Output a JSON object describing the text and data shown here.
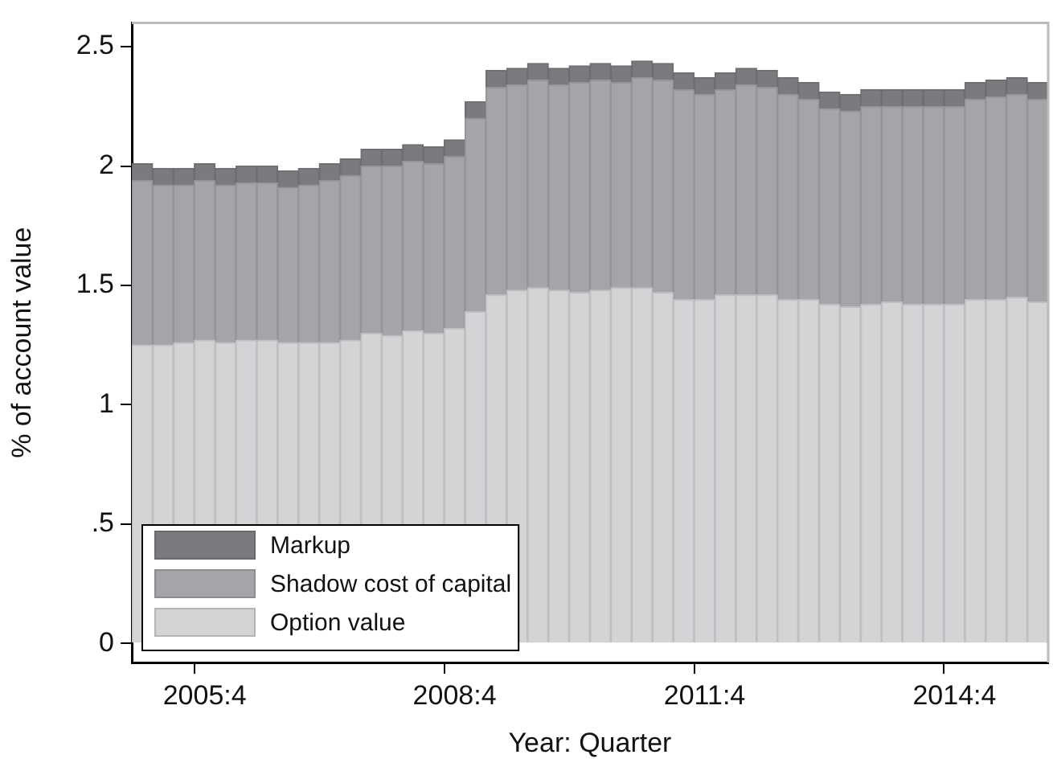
{
  "chart_data": {
    "type": "bar",
    "stacked": true,
    "xlabel": "Year: Quarter",
    "ylabel": "% of account value",
    "categories": [
      null,
      null,
      null,
      "2005:4",
      null,
      null,
      null,
      null,
      null,
      null,
      null,
      null,
      null,
      null,
      null,
      "2008:4",
      null,
      null,
      null,
      null,
      null,
      null,
      null,
      null,
      null,
      null,
      null,
      "2011:4",
      null,
      null,
      null,
      null,
      null,
      null,
      null,
      null,
      null,
      null,
      null,
      "2014:4",
      null,
      null,
      null,
      null
    ],
    "series": [
      {
        "name": "Option value",
        "color": "#d3d4d6",
        "values": [
          1.25,
          1.25,
          1.26,
          1.27,
          1.26,
          1.27,
          1.27,
          1.26,
          1.26,
          1.26,
          1.27,
          1.3,
          1.29,
          1.31,
          1.3,
          1.32,
          1.39,
          1.46,
          1.48,
          1.49,
          1.48,
          1.47,
          1.48,
          1.49,
          1.49,
          1.47,
          1.44,
          1.44,
          1.46,
          1.46,
          1.46,
          1.44,
          1.44,
          1.42,
          1.41,
          1.42,
          1.43,
          1.42,
          1.42,
          1.42,
          1.44,
          1.44,
          1.45,
          1.43
        ]
      },
      {
        "name": "Shadow cost of capital",
        "color": "#a4a5a8",
        "values": [
          0.69,
          0.67,
          0.66,
          0.67,
          0.66,
          0.66,
          0.66,
          0.65,
          0.66,
          0.68,
          0.69,
          0.7,
          0.71,
          0.71,
          0.71,
          0.72,
          0.81,
          0.87,
          0.86,
          0.87,
          0.86,
          0.88,
          0.88,
          0.86,
          0.88,
          0.89,
          0.88,
          0.86,
          0.86,
          0.88,
          0.87,
          0.86,
          0.84,
          0.82,
          0.82,
          0.83,
          0.82,
          0.83,
          0.83,
          0.83,
          0.84,
          0.85,
          0.85,
          0.85
        ]
      },
      {
        "name": "Markup",
        "color": "#7a7b7e",
        "values": [
          0.07,
          0.07,
          0.07,
          0.07,
          0.07,
          0.07,
          0.07,
          0.07,
          0.07,
          0.07,
          0.07,
          0.07,
          0.07,
          0.07,
          0.07,
          0.07,
          0.07,
          0.07,
          0.07,
          0.07,
          0.07,
          0.07,
          0.07,
          0.07,
          0.07,
          0.07,
          0.07,
          0.07,
          0.07,
          0.07,
          0.07,
          0.07,
          0.07,
          0.07,
          0.07,
          0.07,
          0.07,
          0.07,
          0.07,
          0.07,
          0.07,
          0.07,
          0.07,
          0.07
        ]
      }
    ],
    "ylim": [
      -0.08,
      2.6
    ],
    "yticks": [
      0,
      {
        "value": 0.5,
        "label": ".5"
      },
      1,
      1.5,
      2,
      2.5
    ],
    "grid": false,
    "legend": "bottom left"
  }
}
